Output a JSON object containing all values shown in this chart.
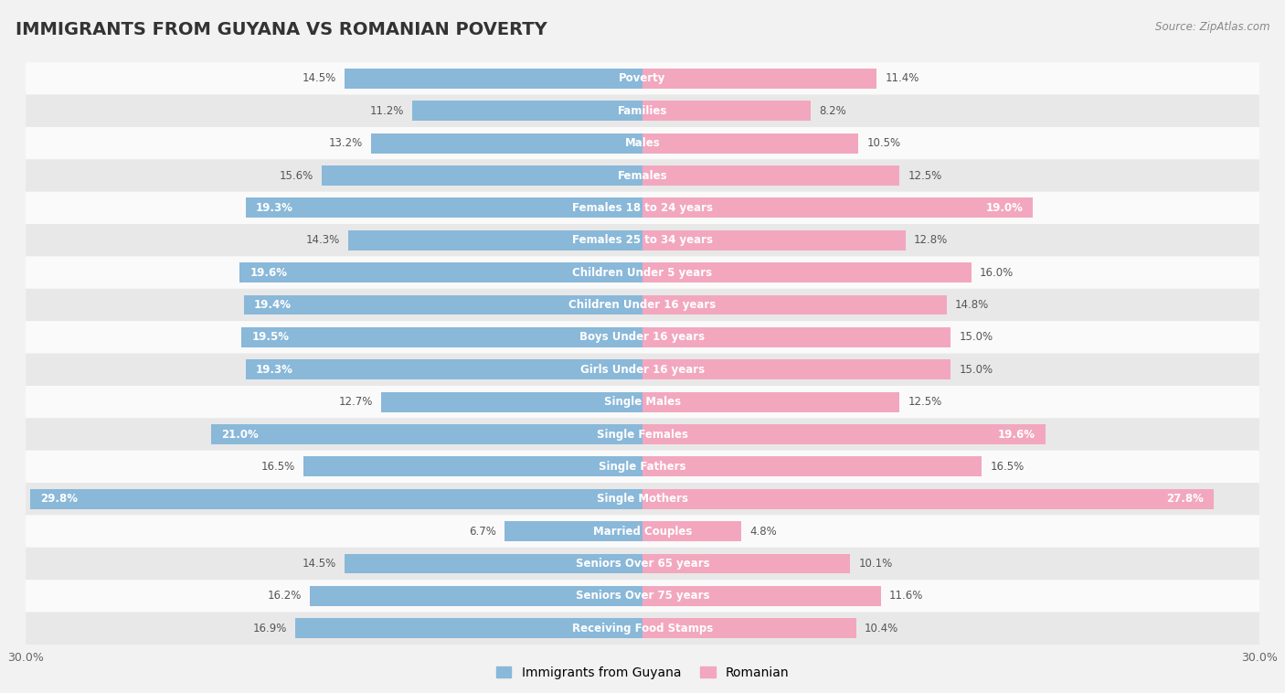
{
  "title": "IMMIGRANTS FROM GUYANA VS ROMANIAN POVERTY",
  "source": "Source: ZipAtlas.com",
  "categories": [
    "Poverty",
    "Families",
    "Males",
    "Females",
    "Females 18 to 24 years",
    "Females 25 to 34 years",
    "Children Under 5 years",
    "Children Under 16 years",
    "Boys Under 16 years",
    "Girls Under 16 years",
    "Single Males",
    "Single Females",
    "Single Fathers",
    "Single Mothers",
    "Married Couples",
    "Seniors Over 65 years",
    "Seniors Over 75 years",
    "Receiving Food Stamps"
  ],
  "guyana_values": [
    14.5,
    11.2,
    13.2,
    15.6,
    19.3,
    14.3,
    19.6,
    19.4,
    19.5,
    19.3,
    12.7,
    21.0,
    16.5,
    29.8,
    6.7,
    14.5,
    16.2,
    16.9
  ],
  "romanian_values": [
    11.4,
    8.2,
    10.5,
    12.5,
    19.0,
    12.8,
    16.0,
    14.8,
    15.0,
    15.0,
    12.5,
    19.6,
    16.5,
    27.8,
    4.8,
    10.1,
    11.6,
    10.4
  ],
  "guyana_color": "#89b8d9",
  "romanian_color": "#f2a7bf",
  "guyana_label": "Immigrants from Guyana",
  "romanian_label": "Romanian",
  "background_color": "#f2f2f2",
  "row_color_light": "#fafafa",
  "row_color_dark": "#e8e8e8",
  "axis_limit": 30.0,
  "title_fontsize": 14,
  "label_fontsize": 8.5,
  "value_fontsize": 8.5,
  "legend_fontsize": 10,
  "highlighted_guyana": [
    4,
    6,
    7,
    8,
    9,
    11,
    13
  ],
  "highlighted_romanian": [
    4,
    11,
    13
  ]
}
